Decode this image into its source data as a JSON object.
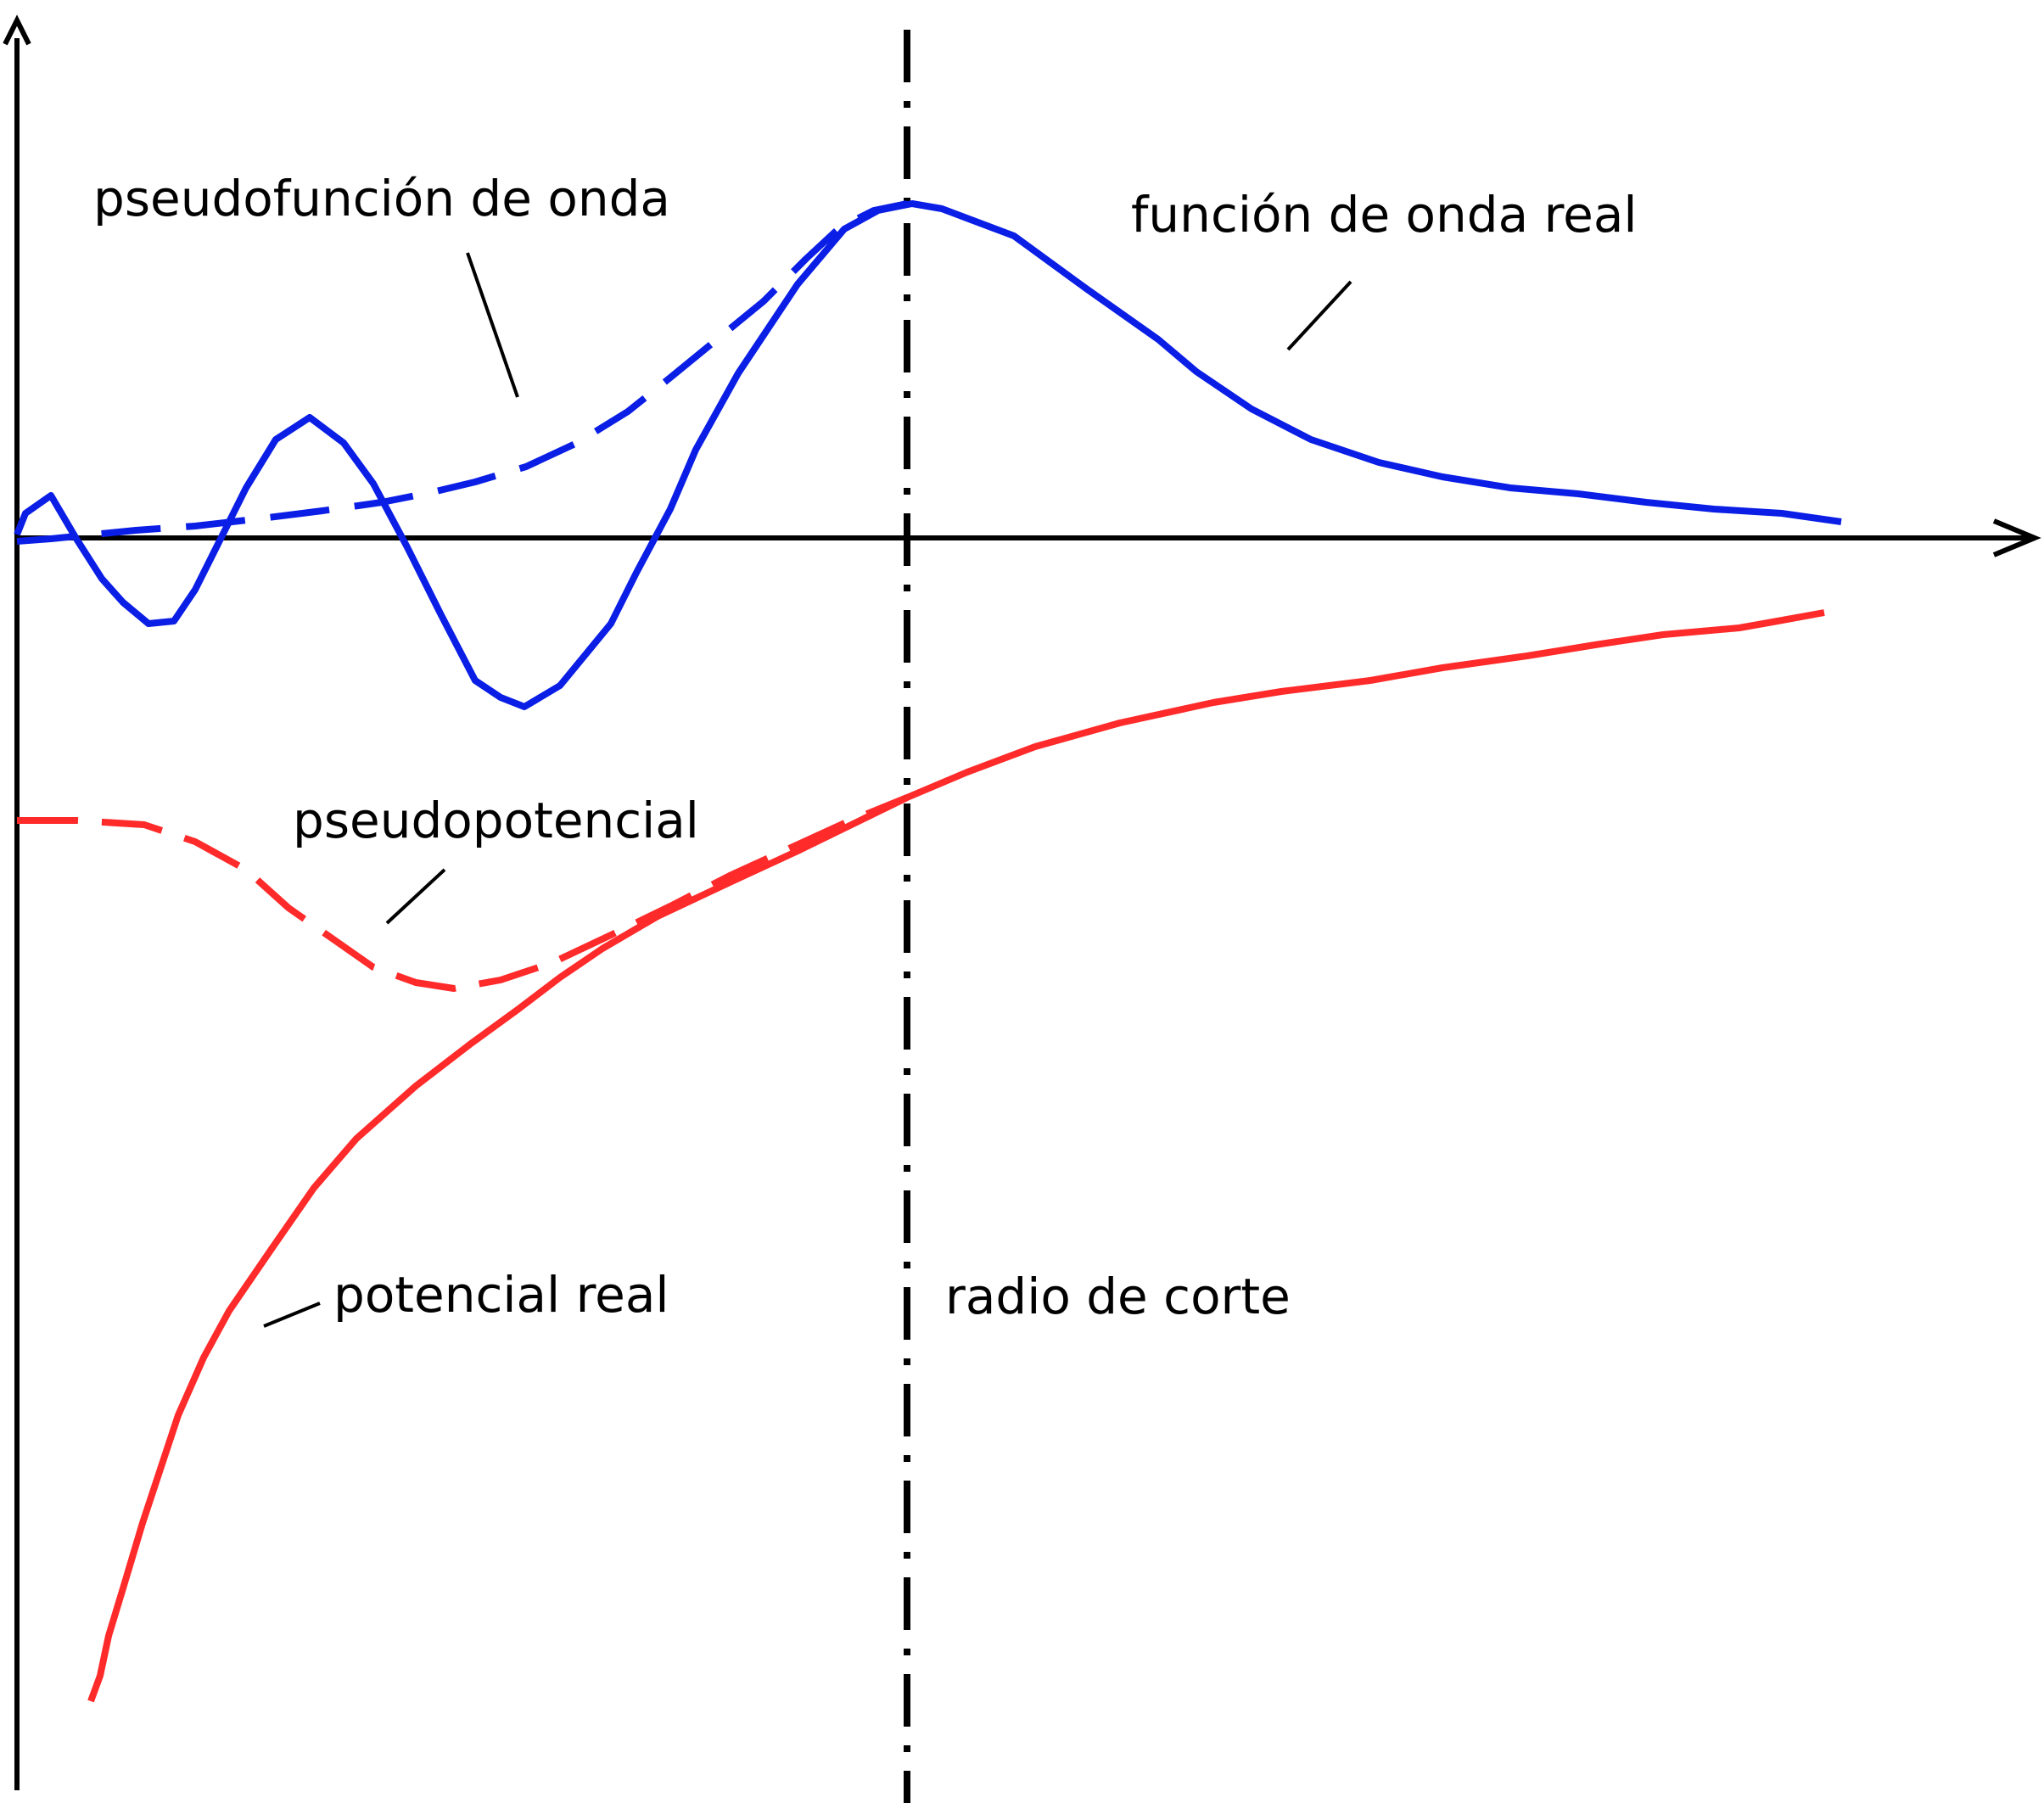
{
  "labels": {
    "pseudo_wave": "pseudofunción de onda",
    "real_wave": "función de onda real",
    "pseudo_potential": "pseudopotencial",
    "real_potential": "potencial real",
    "cutoff_radius": "radio de corte"
  },
  "colors": {
    "wavefunction": "#0a1ee6",
    "potential": "#ff2a2a",
    "axes": "#000000",
    "cutoff_line": "#000000"
  },
  "line_styles": {
    "real_wave": "solid",
    "pseudo_wave": "dashed",
    "real_potential": "solid",
    "pseudo_potential": "dashed",
    "cutoff_line": "dash-dot"
  }
}
